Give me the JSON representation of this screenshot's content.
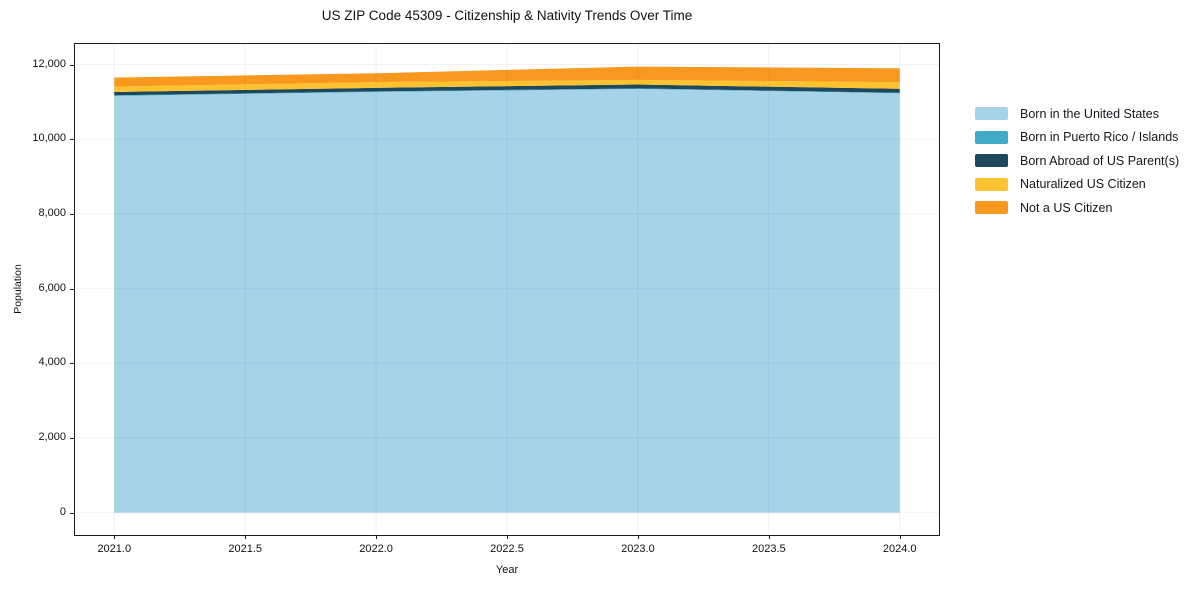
{
  "title": "US ZIP Code 45309 - Citizenship & Nativity Trends Over Time",
  "chart_data": {
    "type": "area",
    "stacked": true,
    "title": "US ZIP Code 45309 - Citizenship & Nativity Trends Over Time",
    "xlabel": "Year",
    "ylabel": "Population",
    "x": [
      2021,
      2022,
      2023,
      2024
    ],
    "series": [
      {
        "name": "Born in the United States",
        "color": "#a5d3e8",
        "values": [
          11160,
          11265,
          11345,
          11230
        ]
      },
      {
        "name": "Born in Puerto Rico / Islands",
        "color": "#41aac7",
        "values": [
          15,
          15,
          15,
          15
        ]
      },
      {
        "name": "Born Abroad of US Parent(s)",
        "color": "#20485c",
        "values": [
          90,
          95,
          105,
          105
        ]
      },
      {
        "name": "Naturalized US Citizen",
        "color": "#fdc230",
        "values": [
          145,
          155,
          125,
          175
        ]
      },
      {
        "name": "Not a US Citizen",
        "color": "#f8981f",
        "values": [
          240,
          235,
          355,
          375
        ]
      }
    ],
    "totals": [
      11650,
      11765,
      11945,
      11905
    ],
    "xlim": [
      2020.85,
      2024.15
    ],
    "ylim": [
      -600,
      12550
    ],
    "x_ticks": {
      "values": [
        2021.0,
        2021.5,
        2022.0,
        2022.5,
        2023.0,
        2023.5,
        2024.0
      ],
      "labels": [
        "2021.0",
        "2021.5",
        "2022.0",
        "2022.5",
        "2023.0",
        "2023.5",
        "2024.0"
      ]
    },
    "y_ticks": {
      "values": [
        0,
        2000,
        4000,
        6000,
        8000,
        10000,
        12000
      ],
      "labels": [
        "0",
        "2,000",
        "4,000",
        "6,000",
        "8,000",
        "10,000",
        "12,000"
      ]
    },
    "grid": true,
    "legend_position": "right"
  },
  "colors": {
    "background": "#ffffff",
    "spine": "#1a1a1a",
    "grid": "rgba(30,30,80,0.06)",
    "text": "#111111"
  }
}
